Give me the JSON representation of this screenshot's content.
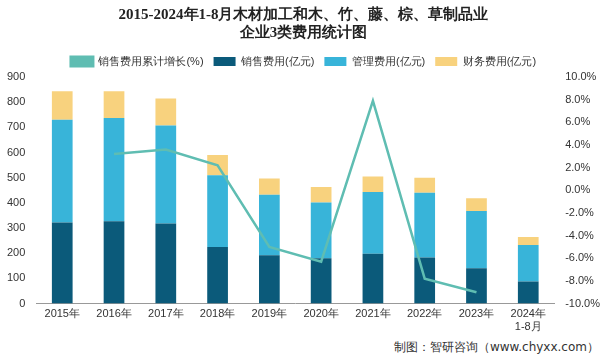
{
  "chart_data": {
    "type": "bar",
    "title": [
      "2015-2024年1-8月木材加工和木、竹、藤、棕、草制品业",
      "企业3类费用统计图"
    ],
    "annotations": [
      "制图：智研咨询（www.chyxx.com）"
    ],
    "categories": [
      "2015年",
      "2016年",
      "2017年",
      "2018年",
      "2019年",
      "2020年",
      "2021年",
      "2022年",
      "2023年",
      [
        "2024年",
        "1-8月"
      ]
    ],
    "series": [
      {
        "name": "销售费用(亿元)",
        "type": "bar",
        "color": "#0b5a7a",
        "values": [
          322,
          327,
          318,
          225,
          192,
          180,
          198,
          183,
          140,
          88
        ]
      },
      {
        "name": "管理费用(亿元)",
        "type": "bar",
        "color": "#38b4d9",
        "values": [
          408,
          410,
          389,
          285,
          240,
          222,
          245,
          257,
          228,
          145
        ]
      },
      {
        "name": "财务费用(亿元)",
        "type": "bar",
        "color": "#f8d27e",
        "values": [
          113,
          106,
          108,
          80,
          65,
          61,
          62,
          60,
          50,
          32
        ]
      },
      {
        "name": "销售费用累计增长(%)",
        "type": "line",
        "axis": "y2",
        "color": "#5fbdb2",
        "values": [
          null,
          3.2,
          3.6,
          2.2,
          -5.0,
          -6.3,
          7.9,
          -7.8,
          -9.0,
          null
        ]
      }
    ],
    "ylim": [
      0,
      900
    ],
    "yticks": [
      0,
      100,
      200,
      300,
      400,
      500,
      600,
      700,
      800,
      900
    ],
    "y2lim": [
      -10,
      10
    ],
    "y2ticks": [
      {
        "value": -10,
        "label": "-10.0%"
      },
      {
        "value": -8,
        "label": "-8.0%"
      },
      {
        "value": -6,
        "label": "-6.0%"
      },
      {
        "value": -4,
        "label": "-4.0%"
      },
      {
        "value": -2,
        "label": "-2.0%"
      },
      {
        "value": 0,
        "label": "0.0%"
      },
      {
        "value": 2,
        "label": "2.0%"
      },
      {
        "value": 4,
        "label": "4.0%"
      },
      {
        "value": 6,
        "label": "6.0%"
      },
      {
        "value": 8,
        "label": "8.0%"
      },
      {
        "value": 10,
        "label": "10.0%"
      }
    ],
    "stacked": true,
    "grid": false,
    "legend": "top"
  }
}
